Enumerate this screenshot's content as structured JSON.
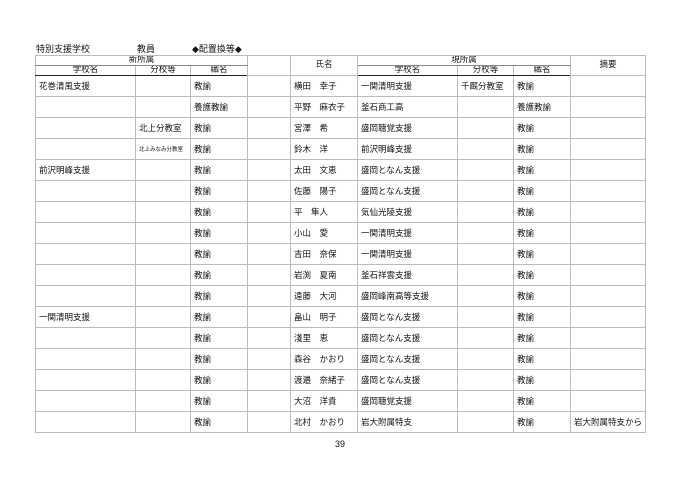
{
  "header": {
    "category": "特別支援学校",
    "role": "教員",
    "section": "◆配置換等◆"
  },
  "columns": {
    "new_affiliation": "新所属",
    "school": "学校名",
    "branch": "分校等",
    "position": "職名",
    "name": "氏名",
    "current_affiliation": "現所属",
    "cur_school": "学校名",
    "cur_branch": "分校等",
    "cur_position": "職名",
    "summary": "摘要"
  },
  "rows": [
    {
      "new_school": "花巻清風支援",
      "new_branch": "",
      "new_position": "教諭",
      "name": "横田　幸子",
      "cur_school": "一関清明支援",
      "cur_branch": "千厩分教室",
      "cur_position": "教諭",
      "summary": ""
    },
    {
      "new_school": "",
      "new_branch": "",
      "new_position": "養護教諭",
      "name": "平野　麻衣子",
      "cur_school": "釜石商工高",
      "cur_branch": "",
      "cur_position": "養護教諭",
      "summary": ""
    },
    {
      "new_school": "",
      "new_branch": "北上分教室",
      "new_position": "教諭",
      "name": "宮澤　希",
      "cur_school": "盛岡聴覚支援",
      "cur_branch": "",
      "cur_position": "教諭",
      "summary": ""
    },
    {
      "new_school": "",
      "new_branch": "北上みなみ分教室",
      "new_position": "教諭",
      "name": "鈴木　洋",
      "cur_school": "前沢明峰支援",
      "cur_branch": "",
      "cur_position": "教諭",
      "summary": ""
    },
    {
      "new_school": "前沢明峰支援",
      "new_branch": "",
      "new_position": "教諭",
      "name": "太田　文恵",
      "cur_school": "盛岡となん支援",
      "cur_branch": "",
      "cur_position": "教諭",
      "summary": ""
    },
    {
      "new_school": "",
      "new_branch": "",
      "new_position": "教諭",
      "name": "佐藤　陽子",
      "cur_school": "盛岡となん支援",
      "cur_branch": "",
      "cur_position": "教諭",
      "summary": ""
    },
    {
      "new_school": "",
      "new_branch": "",
      "new_position": "教諭",
      "name": "平　隼人",
      "cur_school": "気仙光陵支援",
      "cur_branch": "",
      "cur_position": "教諭",
      "summary": ""
    },
    {
      "new_school": "",
      "new_branch": "",
      "new_position": "教諭",
      "name": "小山　愛",
      "cur_school": "一関清明支援",
      "cur_branch": "",
      "cur_position": "教諭",
      "summary": ""
    },
    {
      "new_school": "",
      "new_branch": "",
      "new_position": "教諭",
      "name": "吉田　奈保",
      "cur_school": "一関清明支援",
      "cur_branch": "",
      "cur_position": "教諭",
      "summary": ""
    },
    {
      "new_school": "",
      "new_branch": "",
      "new_position": "教諭",
      "name": "岩渕　夏南",
      "cur_school": "釜石祥雲支援",
      "cur_branch": "",
      "cur_position": "教諭",
      "summary": ""
    },
    {
      "new_school": "",
      "new_branch": "",
      "new_position": "教諭",
      "name": "遠藤　大河",
      "cur_school": "盛岡峰南高等支援",
      "cur_branch": "",
      "cur_position": "教諭",
      "summary": ""
    },
    {
      "new_school": "一関清明支援",
      "new_branch": "",
      "new_position": "教諭",
      "name": "畠山　明子",
      "cur_school": "盛岡となん支援",
      "cur_branch": "",
      "cur_position": "教諭",
      "summary": ""
    },
    {
      "new_school": "",
      "new_branch": "",
      "new_position": "教諭",
      "name": "淺里　恵",
      "cur_school": "盛岡となん支援",
      "cur_branch": "",
      "cur_position": "教諭",
      "summary": ""
    },
    {
      "new_school": "",
      "new_branch": "",
      "new_position": "教諭",
      "name": "森谷　かおり",
      "cur_school": "盛岡となん支援",
      "cur_branch": "",
      "cur_position": "教諭",
      "summary": ""
    },
    {
      "new_school": "",
      "new_branch": "",
      "new_position": "教諭",
      "name": "渡邉　奈緒子",
      "cur_school": "盛岡となん支援",
      "cur_branch": "",
      "cur_position": "教諭",
      "summary": ""
    },
    {
      "new_school": "",
      "new_branch": "",
      "new_position": "教諭",
      "name": "大沼　洋貴",
      "cur_school": "盛岡聴覚支援",
      "cur_branch": "",
      "cur_position": "教諭",
      "summary": ""
    },
    {
      "new_school": "",
      "new_branch": "",
      "new_position": "教諭",
      "name": "北村　かおり",
      "cur_school": "岩大附属特支",
      "cur_branch": "",
      "cur_position": "教諭",
      "summary": "岩大附属特支から"
    }
  ],
  "page_number": "39"
}
